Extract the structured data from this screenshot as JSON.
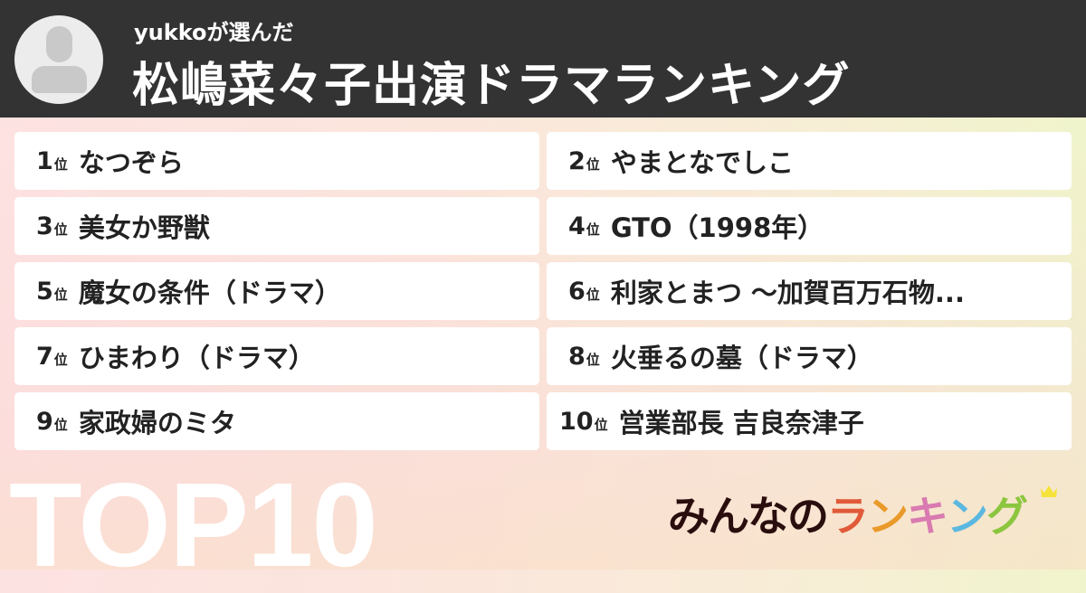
{
  "header": {
    "user_label": "yukkoが選んだ",
    "title": "松嶋菜々子出演ドラマランキング"
  },
  "rank_suffix": "位",
  "items": [
    {
      "rank": "1",
      "name": "なつぞら"
    },
    {
      "rank": "2",
      "name": "やまとなでしこ"
    },
    {
      "rank": "3",
      "name": "美女か野獣"
    },
    {
      "rank": "4",
      "name": "GTO（1998年）"
    },
    {
      "rank": "5",
      "name": "魔女の条件（ドラマ）"
    },
    {
      "rank": "6",
      "name": "利家とまつ ～加賀百万石物..."
    },
    {
      "rank": "7",
      "name": "ひまわり（ドラマ）"
    },
    {
      "rank": "8",
      "name": "火垂るの墓（ドラマ）"
    },
    {
      "rank": "9",
      "name": "家政婦のミタ"
    },
    {
      "rank": "10",
      "name": "営業部長 吉良奈津子"
    }
  ],
  "badge": "TOP10",
  "logo": {
    "part1": "みんなの",
    "letters": [
      "ラ",
      "ン",
      "キ",
      "ン",
      "グ"
    ],
    "colors": [
      "#e05a3a",
      "#e99a2a",
      "#d97bb0",
      "#5bb8e0",
      "#8cc63f"
    ],
    "text_color": "#2a0e0e",
    "crown_color": "#f5e33a"
  }
}
